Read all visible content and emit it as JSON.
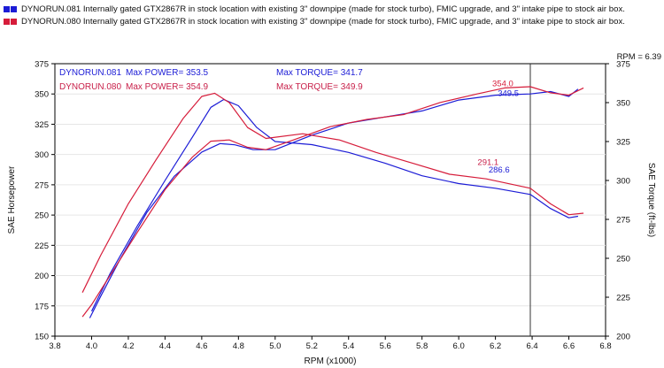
{
  "legend": [
    {
      "run": "DYNORUN.081",
      "text": "Internally gated GTX2867R in stock location with existing 3\" downpipe (made for stock turbo), FMIC upgrade, and 3\" intake pipe to stock air box.",
      "color": "#1c1cd6"
    },
    {
      "run": "DYNORUN.080",
      "text": "Internally gated GTX2867R in stock location with existing 3\" downpipe (made for stock turbo), FMIC upgrade, and 3\" intake pipe to stock air box.",
      "color": "#d61c3a"
    }
  ],
  "rpm_readout": "RPM = 6.39",
  "chart_data": {
    "type": "line",
    "xlabel": "RPM (x1000)",
    "ylabel": "SAE Horsepower",
    "y2label": "SAE Torque (ft-lbs)",
    "xlim": [
      3.8,
      6.8
    ],
    "ylim": [
      150,
      375
    ],
    "y2lim": [
      200,
      375
    ],
    "x_ticks": [
      "3.8",
      "4.0",
      "4.2",
      "4.4",
      "4.6",
      "4.8",
      "5.0",
      "5.2",
      "5.4",
      "5.6",
      "5.8",
      "6.0",
      "6.2",
      "6.4",
      "6.6",
      "6.8"
    ],
    "y_ticks": [
      "150",
      "175",
      "200",
      "225",
      "250",
      "275",
      "300",
      "325",
      "350",
      "375"
    ],
    "y2_ticks": [
      "200",
      "225",
      "250",
      "275",
      "300",
      "325",
      "350",
      "375"
    ],
    "cursor_x": 6.39,
    "stats": [
      {
        "run": "DYNORUN.081",
        "power": "Max POWER= 353.5",
        "torque": "Max TORQUE= 341.7",
        "color": "#1c1cd6"
      },
      {
        "run": "DYNORUN.080",
        "power": "Max POWER= 354.9",
        "torque": "Max TORQUE= 349.9",
        "color": "#c8204a"
      }
    ],
    "annotations": [
      {
        "text": "354.0",
        "x": 6.24,
        "y": 356.5,
        "color": "#d61c3a"
      },
      {
        "text": "349.5",
        "x": 6.27,
        "y": 348.5,
        "color": "#1c1cd6"
      },
      {
        "text": "291.1",
        "x": 6.16,
        "y": 291.5,
        "color": "#c8204a"
      },
      {
        "text": "286.6",
        "x": 6.22,
        "y": 285.0,
        "color": "#1c1cd6"
      }
    ],
    "series": [
      {
        "name": "DYNORUN.081",
        "measure": "power",
        "axis": "left",
        "color": "#1c1cd6",
        "x": [
          3.99,
          4.05,
          4.15,
          4.3,
          4.45,
          4.6,
          4.7,
          4.78,
          4.88,
          5.0,
          5.2,
          5.4,
          5.6,
          5.8,
          6.0,
          6.2,
          6.39,
          6.5,
          6.6,
          6.65
        ],
        "y": [
          165,
          183,
          212,
          252,
          282,
          302,
          309,
          308,
          304,
          304,
          316,
          326,
          331,
          336,
          345,
          349,
          350,
          352,
          348,
          354
        ]
      },
      {
        "name": "DYNORUN.081",
        "measure": "torque",
        "axis": "right",
        "color": "#1c1cd6",
        "x": [
          4.0,
          4.1,
          4.25,
          4.4,
          4.55,
          4.65,
          4.72,
          4.8,
          4.9,
          5.0,
          5.2,
          5.4,
          5.6,
          5.8,
          6.0,
          6.2,
          6.39,
          6.5,
          6.6,
          6.65
        ],
        "y": [
          216,
          240,
          271,
          300,
          328,
          347,
          352,
          348,
          334,
          325,
          323,
          318,
          311,
          303,
          298,
          295,
          291,
          282,
          276,
          277
        ]
      },
      {
        "name": "DYNORUN.080",
        "measure": "power",
        "axis": "left",
        "color": "#d61c3a",
        "x": [
          3.95,
          4.0,
          4.1,
          4.25,
          4.4,
          4.55,
          4.65,
          4.75,
          4.85,
          4.95,
          5.1,
          5.3,
          5.5,
          5.7,
          5.9,
          6.1,
          6.25,
          6.39,
          6.5,
          6.6,
          6.68
        ],
        "y": [
          166,
          176,
          200,
          236,
          271,
          298,
          311,
          312,
          306,
          304,
          312,
          323,
          329,
          333,
          343,
          350,
          355,
          356,
          351,
          349,
          355
        ]
      },
      {
        "name": "DYNORUN.080",
        "measure": "torque",
        "axis": "right",
        "color": "#d61c3a",
        "x": [
          3.95,
          4.05,
          4.2,
          4.35,
          4.5,
          4.6,
          4.67,
          4.75,
          4.85,
          4.95,
          5.15,
          5.35,
          5.55,
          5.75,
          5.95,
          6.15,
          6.39,
          6.5,
          6.6,
          6.68
        ],
        "y": [
          228,
          252,
          285,
          313,
          340,
          354,
          356,
          350,
          334,
          327,
          330,
          326,
          318,
          311,
          304,
          301,
          295,
          285,
          278,
          279
        ]
      }
    ]
  }
}
